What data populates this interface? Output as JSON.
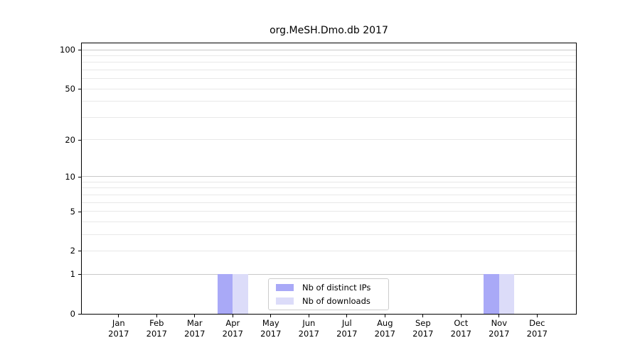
{
  "chart_data": {
    "type": "bar",
    "title": "org.MeSH.Dmo.db 2017",
    "categories": [
      "Jan",
      "Feb",
      "Mar",
      "Apr",
      "May",
      "Jun",
      "Jul",
      "Aug",
      "Sep",
      "Oct",
      "Nov",
      "Dec"
    ],
    "x_year_label": "2017",
    "series": [
      {
        "name": "Nb of distinct IPs",
        "color": "#a9a9f7",
        "values": [
          0,
          0,
          0,
          1,
          0,
          0,
          0,
          0,
          0,
          0,
          1,
          0
        ]
      },
      {
        "name": "Nb of downloads",
        "color": "#dcdcf9",
        "values": [
          0,
          0,
          0,
          1,
          0,
          0,
          0,
          0,
          0,
          0,
          1,
          0
        ]
      }
    ],
    "y_scale": "log10(1+x)",
    "y_tick_values": [
      0,
      1,
      2,
      5,
      10,
      20,
      50,
      100
    ],
    "y_major_gridlines": [
      1,
      10,
      100
    ],
    "y_minor_gridlines": [
      2,
      3,
      4,
      5,
      6,
      7,
      8,
      9,
      20,
      30,
      40,
      50,
      60,
      70,
      80,
      90
    ],
    "ylim": [
      0,
      113
    ],
    "grid": true,
    "legend_position": "bottom-center-inside"
  },
  "colors": {
    "grid_major": "#c9c9c9",
    "grid_minor": "#e8e8e8",
    "spine": "#000000",
    "legend_border": "#cccccc",
    "background": "#ffffff"
  }
}
